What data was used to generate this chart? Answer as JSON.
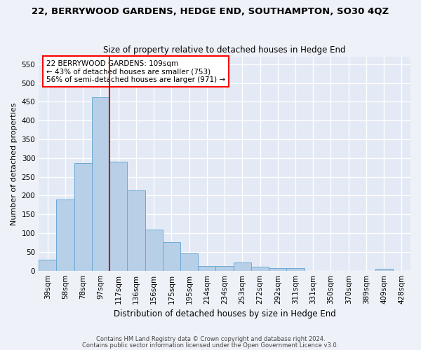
{
  "title": "22, BERRYWOOD GARDENS, HEDGE END, SOUTHAMPTON, SO30 4QZ",
  "subtitle": "Size of property relative to detached houses in Hedge End",
  "xlabel": "Distribution of detached houses by size in Hedge End",
  "ylabel": "Number of detached properties",
  "bar_color": "#b8cfe8",
  "bar_edgecolor": "#6aaad4",
  "highlight_line_color": "#cc0000",
  "highlight_bar_index": 3,
  "categories": [
    "39sqm",
    "58sqm",
    "78sqm",
    "97sqm",
    "117sqm",
    "136sqm",
    "156sqm",
    "175sqm",
    "195sqm",
    "214sqm",
    "234sqm",
    "253sqm",
    "272sqm",
    "292sqm",
    "311sqm",
    "331sqm",
    "350sqm",
    "370sqm",
    "389sqm",
    "409sqm",
    "428sqm"
  ],
  "values": [
    30,
    190,
    287,
    461,
    291,
    213,
    109,
    75,
    46,
    13,
    13,
    21,
    10,
    6,
    6,
    0,
    0,
    0,
    0,
    5,
    0
  ],
  "ylim": [
    0,
    570
  ],
  "yticks": [
    0,
    50,
    100,
    150,
    200,
    250,
    300,
    350,
    400,
    450,
    500,
    550
  ],
  "annotation_text": "22 BERRYWOOD GARDENS: 109sqm\n← 43% of detached houses are smaller (753)\n56% of semi-detached houses are larger (971) →",
  "footer1": "Contains HM Land Registry data © Crown copyright and database right 2024.",
  "footer2": "Contains public sector information licensed under the Open Government Licence v3.0.",
  "bg_color": "#eef2f8",
  "plot_bg_color": "#e4eaf5"
}
